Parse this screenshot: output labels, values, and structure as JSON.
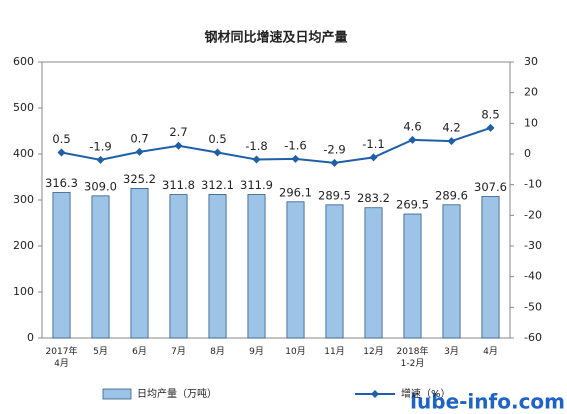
{
  "chart_data": {
    "type": "bar",
    "title": "钢材同比增速及日均产量",
    "categories": [
      "2017年\n4月",
      "5月",
      "6月",
      "7月",
      "8月",
      "9月",
      "10月",
      "11月",
      "12月",
      "2018年\n1-2月",
      "3月",
      "4月"
    ],
    "series": [
      {
        "name": "日均产量（万吨）",
        "type": "bar",
        "color": "#9dc3e6",
        "axis": "y",
        "values": [
          316.3,
          309.0,
          325.2,
          311.8,
          312.1,
          311.9,
          296.1,
          289.5,
          283.2,
          269.5,
          289.6,
          307.6
        ],
        "value_labels": [
          "316.3",
          "309.0",
          "325.2",
          "311.8",
          "312.1",
          "311.9",
          "296.1",
          "289.5",
          "283.2",
          "269.5",
          "289.6",
          "307.6"
        ]
      },
      {
        "name": "增速（%）",
        "type": "line",
        "color": "#1f5fa8",
        "axis": "y2",
        "values": [
          0.5,
          -1.9,
          0.7,
          2.7,
          0.5,
          -1.8,
          -1.6,
          -2.9,
          -1.1,
          4.6,
          4.2,
          8.5
        ]
      }
    ],
    "ylim": [
      0,
      600
    ],
    "yticks": [
      0,
      100,
      200,
      300,
      400,
      500,
      600
    ],
    "y2lim": [
      -60,
      30
    ],
    "y2ticks": [
      -60,
      -50,
      -40,
      -30,
      -20,
      -10,
      0,
      10,
      20,
      30
    ],
    "grid": false,
    "watermark": "lube-info.com"
  }
}
